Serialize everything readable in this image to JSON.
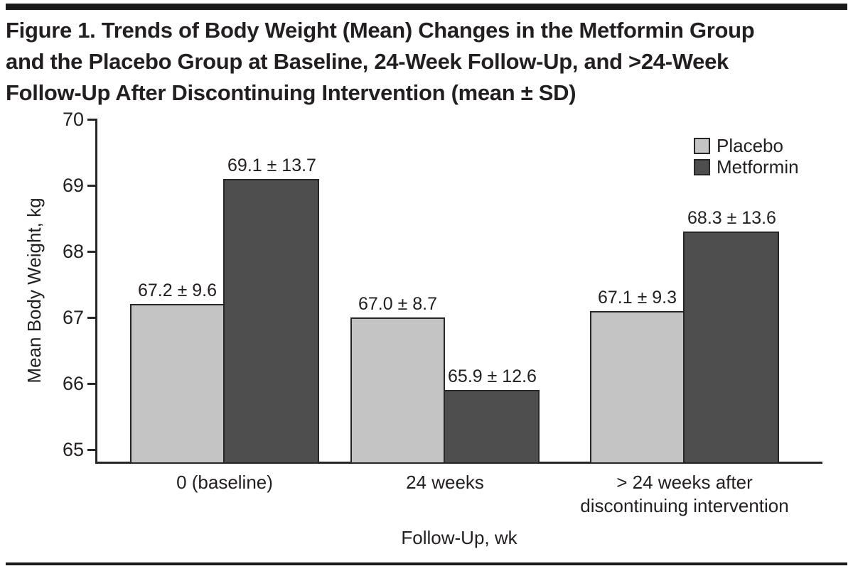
{
  "figure": {
    "title_lines": [
      "Figure 1. Trends of Body Weight (Mean) Changes in the Metformin Group",
      "and the Placebo Group at Baseline, 24-Week Follow-Up, and >24-Week",
      "Follow-Up After Discontinuing Intervention (mean ± SD)"
    ]
  },
  "chart_data": {
    "type": "bar",
    "title": "Figure 1. Trends of Body Weight (Mean) Changes in the Metformin Group and the Placebo Group at Baseline, 24-Week Follow-Up, and >24-Week Follow-Up After Discontinuing Intervention (mean ± SD)",
    "categories": [
      "0 (baseline)",
      "24 weeks",
      "> 24 weeks after\ndiscontinuing intervention"
    ],
    "series": [
      {
        "name": "Placebo",
        "color": "#c4c4c4",
        "values": [
          67.2,
          67.0,
          67.1
        ],
        "sd": [
          9.6,
          8.7,
          9.3
        ],
        "labels": [
          "67.2 ± 9.6",
          "67.0 ± 8.7",
          "67.1 ± 9.3"
        ]
      },
      {
        "name": "Metformin",
        "color": "#4e4e4e",
        "values": [
          69.1,
          65.9,
          68.3
        ],
        "sd": [
          13.7,
          12.6,
          13.6
        ],
        "labels": [
          "69.1 ± 13.7",
          "65.9 ± 12.6",
          "68.3 ± 13.6"
        ]
      }
    ],
    "xlabel": "Follow-Up, wk",
    "ylabel": "Mean Body Weight, kg",
    "yticks": [
      70,
      69,
      68,
      67,
      66,
      65
    ],
    "ylim": [
      64.8,
      70
    ],
    "grid": false,
    "legend_position": "top-right",
    "colors": {
      "text": "#231f20",
      "axis": "#262626",
      "rule": "#1a1a1a",
      "placebo_fill": "#c4c4c4",
      "metformin_fill": "#4e4e4e"
    }
  }
}
